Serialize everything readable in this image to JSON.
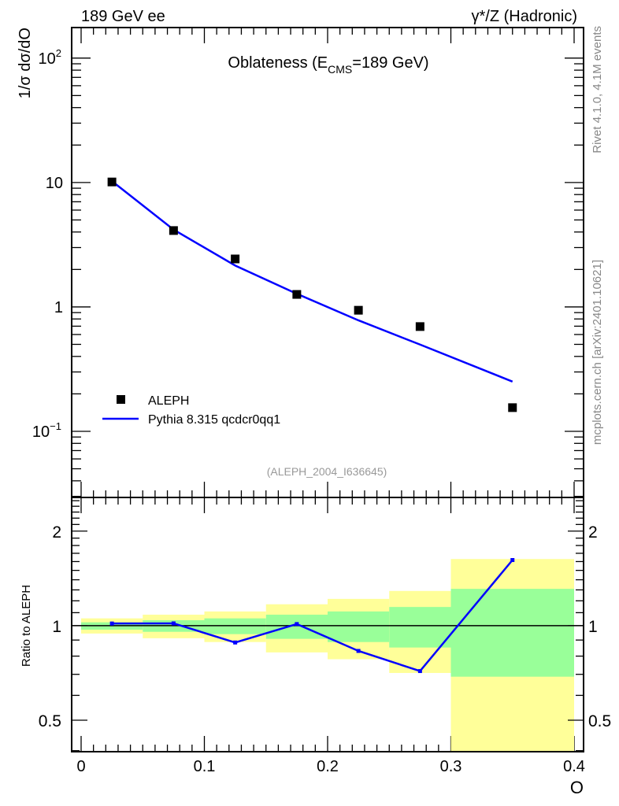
{
  "header": {
    "left": "189 GeV ee",
    "right": "γ*/Z (Hadronic)"
  },
  "side_text": {
    "rivet": "Rivet 4.1.0,  4.1M events",
    "mcplots": "mcplots.cern.ch [arXiv:2401.10621]"
  },
  "colors": {
    "data": "#000000",
    "mc": "#0000ff",
    "band_inner": "#99ff99",
    "band_outer": "#ffff99",
    "side_text": "#888888"
  },
  "chart_data": [
    {
      "type": "scatter",
      "title": "Oblateness (E",
      "title_sub": "CMS",
      "title_tail": "=189 GeV)",
      "ylabel": "1/σ  dσ/dO",
      "yscale": "log",
      "ylim": [
        0.0294,
        176
      ],
      "xlim": [
        0,
        0.4
      ],
      "yticks": [
        {
          "v": 0.1,
          "label": "10",
          "sup": "−1"
        },
        {
          "v": 1,
          "label": "1",
          "sup": ""
        },
        {
          "v": 10,
          "label": "10",
          "sup": ""
        },
        {
          "v": 100,
          "label": "10",
          "sup": "2"
        }
      ],
      "annotation": "(ALEPH_2004_I636645)",
      "legend_position": "bottom-left",
      "series": [
        {
          "name": "ALEPH",
          "kind": "markers",
          "x": [
            0.025,
            0.075,
            0.125,
            0.175,
            0.225,
            0.275,
            0.35
          ],
          "y": [
            10.1,
            4.11,
            2.43,
            1.26,
            0.94,
            0.695,
            0.155
          ]
        },
        {
          "name": "Pythia 8.315 qcdcr0qq1",
          "kind": "line",
          "x": [
            0.025,
            0.075,
            0.125,
            0.175,
            0.225,
            0.275,
            0.35
          ],
          "y": [
            10.26,
            4.18,
            2.15,
            1.275,
            0.78,
            0.498,
            0.251
          ]
        }
      ]
    },
    {
      "type": "line",
      "ylabel": "Ratio to ALEPH",
      "xlabel": "O",
      "yscale": "log",
      "ylim": [
        0.397,
        2.56
      ],
      "xlim": [
        0,
        0.4
      ],
      "xticks": [
        {
          "v": 0,
          "label": "0"
        },
        {
          "v": 0.1,
          "label": "0.1"
        },
        {
          "v": 0.2,
          "label": "0.2"
        },
        {
          "v": 0.3,
          "label": "0.3"
        },
        {
          "v": 0.4,
          "label": "0.4"
        }
      ],
      "yticks": [
        {
          "v": 0.5,
          "label": "0.5"
        },
        {
          "v": 1,
          "label": "1"
        },
        {
          "v": 2,
          "label": "2"
        }
      ],
      "bins": [
        [
          0,
          0.05
        ],
        [
          0.05,
          0.1
        ],
        [
          0.1,
          0.15
        ],
        [
          0.15,
          0.2
        ],
        [
          0.2,
          0.25
        ],
        [
          0.25,
          0.3
        ],
        [
          0.3,
          0.4
        ]
      ],
      "band_inner": [
        [
          0.971,
          1.025
        ],
        [
          0.956,
          1.041
        ],
        [
          0.94,
          1.055
        ],
        [
          0.908,
          1.084
        ],
        [
          0.887,
          1.11
        ],
        [
          0.852,
          1.147
        ],
        [
          0.688,
          1.31
        ]
      ],
      "band_outer": [
        [
          0.944,
          1.055
        ],
        [
          0.912,
          1.084
        ],
        [
          0.887,
          1.11
        ],
        [
          0.822,
          1.17
        ],
        [
          0.782,
          1.217
        ],
        [
          0.707,
          1.29
        ],
        [
          0.3,
          1.63
        ]
      ],
      "series": [
        {
          "name": "Pythia 8.315 qcdcr0qq1 / ALEPH",
          "x": [
            0.025,
            0.075,
            0.125,
            0.175,
            0.225,
            0.275,
            0.35
          ],
          "y": [
            1.016,
            1.017,
            0.884,
            1.012,
            0.831,
            0.717,
            1.618
          ]
        }
      ]
    }
  ]
}
